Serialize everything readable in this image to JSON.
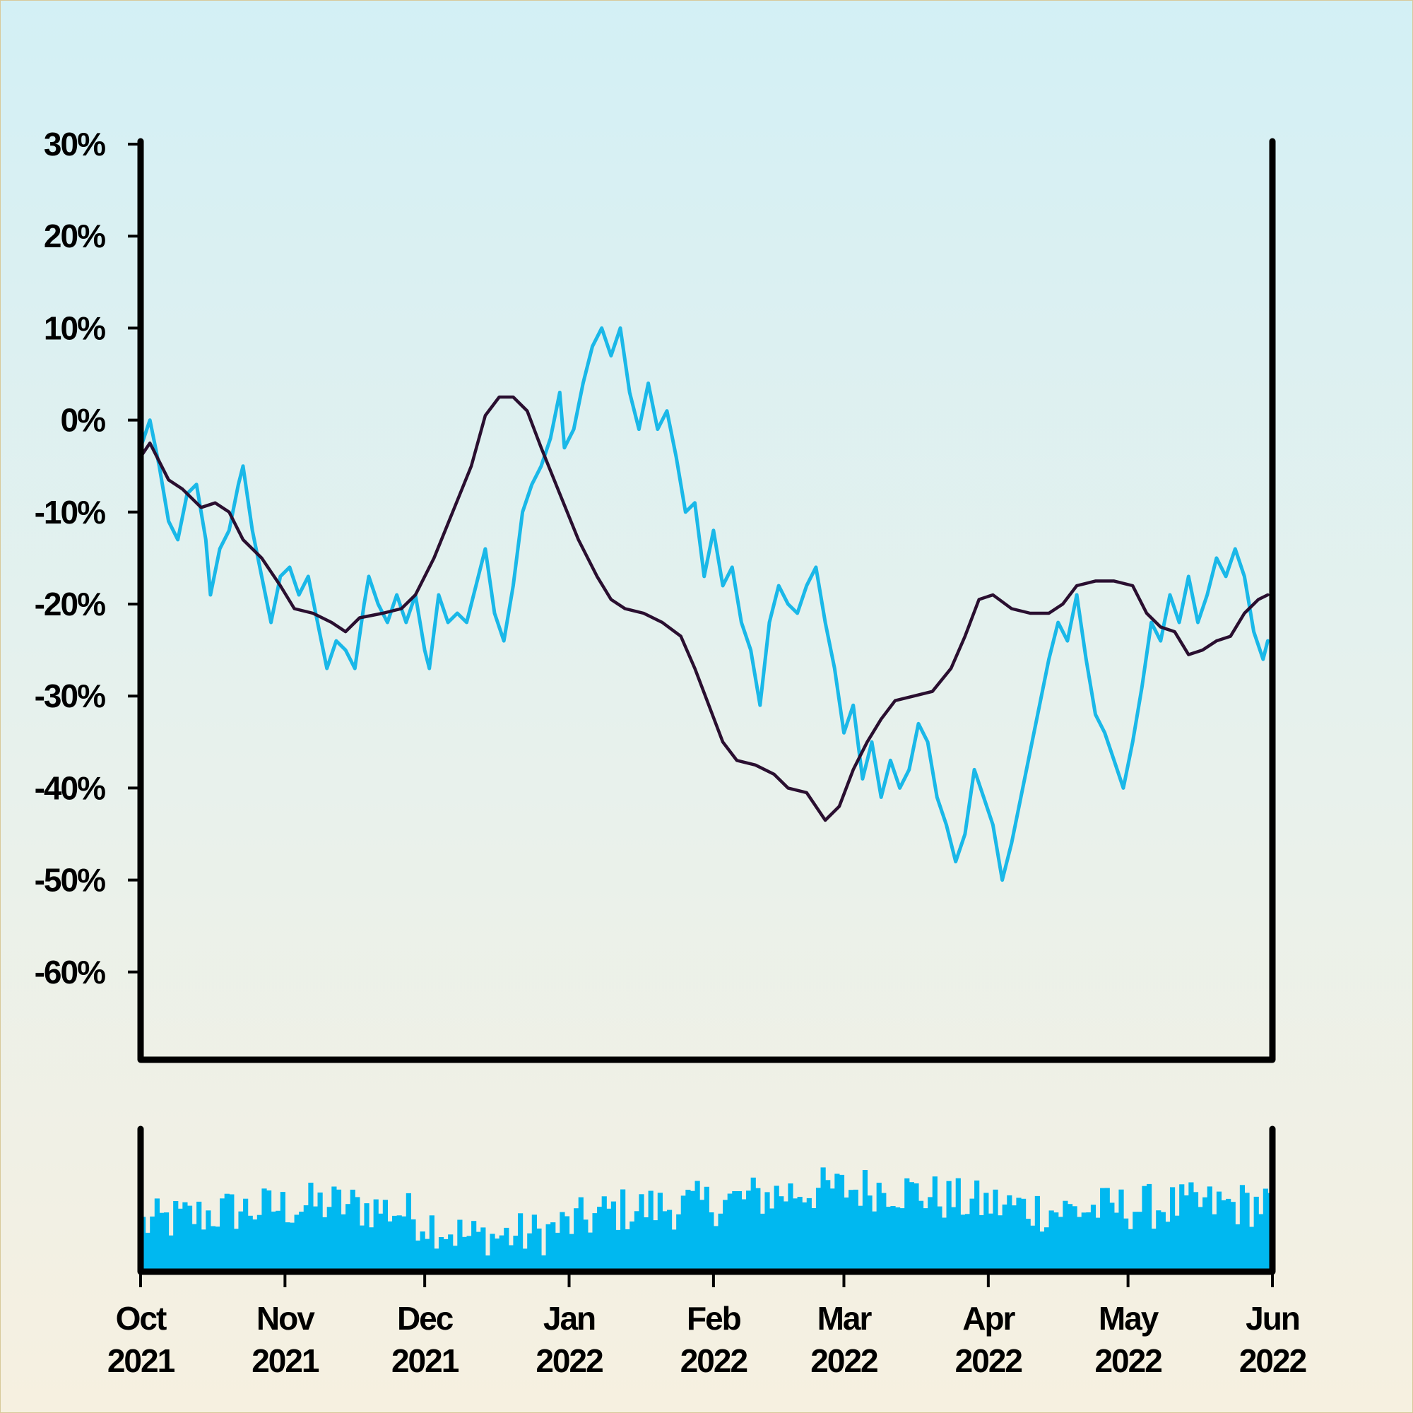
{
  "chart_data": [
    {
      "type": "line",
      "title": "",
      "xlabel": "",
      "ylabel": "",
      "ylim": [
        -70,
        30
      ],
      "y_ticks": [
        "30%",
        "20%",
        "10%",
        "0%",
        "-10%",
        "-20%",
        "-30%",
        "-40%",
        "-50%",
        "-60%"
      ],
      "y_tick_values": [
        30,
        20,
        10,
        0,
        -10,
        -20,
        -30,
        -40,
        -50,
        -60
      ],
      "x_range": [
        "2021-10-01",
        "2022-06-01"
      ],
      "grid": false,
      "series": [
        {
          "color": "#1ab8e8",
          "points": [
            [
              "2021-10-01",
              -3
            ],
            [
              "2021-10-03",
              0
            ],
            [
              "2021-10-05",
              -5
            ],
            [
              "2021-10-07",
              -11
            ],
            [
              "2021-10-09",
              -13
            ],
            [
              "2021-10-11",
              -8
            ],
            [
              "2021-10-13",
              -7
            ],
            [
              "2021-10-15",
              -13
            ],
            [
              "2021-10-16",
              -19
            ],
            [
              "2021-10-18",
              -14
            ],
            [
              "2021-10-20",
              -12
            ],
            [
              "2021-10-22",
              -7
            ],
            [
              "2021-10-23",
              -5
            ],
            [
              "2021-10-25",
              -12
            ],
            [
              "2021-10-27",
              -17
            ],
            [
              "2021-10-29",
              -22
            ],
            [
              "2021-10-31",
              -17
            ],
            [
              "2021-11-02",
              -16
            ],
            [
              "2021-11-04",
              -19
            ],
            [
              "2021-11-06",
              -17
            ],
            [
              "2021-11-08",
              -22
            ],
            [
              "2021-11-10",
              -27
            ],
            [
              "2021-11-12",
              -24
            ],
            [
              "2021-11-14",
              -25
            ],
            [
              "2021-11-16",
              -27
            ],
            [
              "2021-11-18",
              -20
            ],
            [
              "2021-11-19",
              -17
            ],
            [
              "2021-11-21",
              -20
            ],
            [
              "2021-11-23",
              -22
            ],
            [
              "2021-11-25",
              -19
            ],
            [
              "2021-11-27",
              -22
            ],
            [
              "2021-11-29",
              -19
            ],
            [
              "2021-12-01",
              -25
            ],
            [
              "2021-12-02",
              -27
            ],
            [
              "2021-12-04",
              -19
            ],
            [
              "2021-12-06",
              -22
            ],
            [
              "2021-12-08",
              -21
            ],
            [
              "2021-12-10",
              -22
            ],
            [
              "2021-12-12",
              -18
            ],
            [
              "2021-12-14",
              -14
            ],
            [
              "2021-12-16",
              -21
            ],
            [
              "2021-12-18",
              -24
            ],
            [
              "2021-12-20",
              -18
            ],
            [
              "2021-12-22",
              -10
            ],
            [
              "2021-12-24",
              -7
            ],
            [
              "2021-12-26",
              -5
            ],
            [
              "2021-12-28",
              -2
            ],
            [
              "2021-12-30",
              3
            ],
            [
              "2021-12-31",
              -3
            ],
            [
              "2022-01-02",
              -1
            ],
            [
              "2022-01-04",
              4
            ],
            [
              "2022-01-06",
              8
            ],
            [
              "2022-01-08",
              10
            ],
            [
              "2022-01-10",
              7
            ],
            [
              "2022-01-12",
              10
            ],
            [
              "2022-01-14",
              3
            ],
            [
              "2022-01-16",
              -1
            ],
            [
              "2022-01-18",
              4
            ],
            [
              "2022-01-20",
              -1
            ],
            [
              "2022-01-22",
              1
            ],
            [
              "2022-01-24",
              -4
            ],
            [
              "2022-01-26",
              -10
            ],
            [
              "2022-01-28",
              -9
            ],
            [
              "2022-01-30",
              -17
            ],
            [
              "2022-02-01",
              -12
            ],
            [
              "2022-02-03",
              -18
            ],
            [
              "2022-02-05",
              -16
            ],
            [
              "2022-02-07",
              -22
            ],
            [
              "2022-02-09",
              -25
            ],
            [
              "2022-02-11",
              -31
            ],
            [
              "2022-02-13",
              -22
            ],
            [
              "2022-02-15",
              -18
            ],
            [
              "2022-02-17",
              -20
            ],
            [
              "2022-02-19",
              -21
            ],
            [
              "2022-02-21",
              -18
            ],
            [
              "2022-02-23",
              -16
            ],
            [
              "2022-02-25",
              -22
            ],
            [
              "2022-02-27",
              -27
            ],
            [
              "2022-03-01",
              -34
            ],
            [
              "2022-03-03",
              -31
            ],
            [
              "2022-03-05",
              -39
            ],
            [
              "2022-03-07",
              -35
            ],
            [
              "2022-03-09",
              -41
            ],
            [
              "2022-03-11",
              -37
            ],
            [
              "2022-03-13",
              -40
            ],
            [
              "2022-03-15",
              -38
            ],
            [
              "2022-03-17",
              -33
            ],
            [
              "2022-03-19",
              -35
            ],
            [
              "2022-03-21",
              -41
            ],
            [
              "2022-03-23",
              -44
            ],
            [
              "2022-03-25",
              -48
            ],
            [
              "2022-03-27",
              -45
            ],
            [
              "2022-03-29",
              -38
            ],
            [
              "2022-03-31",
              -41
            ],
            [
              "2022-04-02",
              -44
            ],
            [
              "2022-04-04",
              -50
            ],
            [
              "2022-04-06",
              -46
            ],
            [
              "2022-04-08",
              -41
            ],
            [
              "2022-04-10",
              -36
            ],
            [
              "2022-04-12",
              -31
            ],
            [
              "2022-04-14",
              -26
            ],
            [
              "2022-04-16",
              -22
            ],
            [
              "2022-04-18",
              -24
            ],
            [
              "2022-04-20",
              -19
            ],
            [
              "2022-04-22",
              -26
            ],
            [
              "2022-04-24",
              -32
            ],
            [
              "2022-04-26",
              -34
            ],
            [
              "2022-04-28",
              -37
            ],
            [
              "2022-04-30",
              -40
            ],
            [
              "2022-05-02",
              -35
            ],
            [
              "2022-05-04",
              -29
            ],
            [
              "2022-05-06",
              -22
            ],
            [
              "2022-05-08",
              -24
            ],
            [
              "2022-05-10",
              -19
            ],
            [
              "2022-05-12",
              -22
            ],
            [
              "2022-05-14",
              -17
            ],
            [
              "2022-05-16",
              -22
            ],
            [
              "2022-05-18",
              -19
            ],
            [
              "2022-05-20",
              -15
            ],
            [
              "2022-05-22",
              -17
            ],
            [
              "2022-05-24",
              -14
            ],
            [
              "2022-05-26",
              -17
            ],
            [
              "2022-05-28",
              -23
            ],
            [
              "2022-05-30",
              -26
            ],
            [
              "2022-05-31",
              -24
            ]
          ]
        },
        {
          "color": "#2a0f30",
          "points": [
            [
              "2021-10-01",
              -4
            ],
            [
              "2021-10-03",
              -2.5
            ],
            [
              "2021-10-07",
              -6.5
            ],
            [
              "2021-10-10",
              -7.5
            ],
            [
              "2021-10-14",
              -9.5
            ],
            [
              "2021-10-17",
              -9
            ],
            [
              "2021-10-20",
              -10
            ],
            [
              "2021-10-23",
              -13
            ],
            [
              "2021-10-27",
              -15
            ],
            [
              "2021-10-31",
              -18
            ],
            [
              "2021-11-03",
              -20.5
            ],
            [
              "2021-11-07",
              -21
            ],
            [
              "2021-11-11",
              -22
            ],
            [
              "2021-11-14",
              -23
            ],
            [
              "2021-11-17",
              -21.5
            ],
            [
              "2021-11-22",
              -21
            ],
            [
              "2021-11-26",
              -20.5
            ],
            [
              "2021-11-29",
              -19
            ],
            [
              "2021-12-03",
              -15
            ],
            [
              "2021-12-07",
              -10
            ],
            [
              "2021-12-11",
              -5
            ],
            [
              "2021-12-14",
              0.5
            ],
            [
              "2021-12-17",
              2.5
            ],
            [
              "2021-12-20",
              2.5
            ],
            [
              "2021-12-23",
              1
            ],
            [
              "2021-12-26",
              -3
            ],
            [
              "2021-12-30",
              -8
            ],
            [
              "2022-01-03",
              -13
            ],
            [
              "2022-01-07",
              -17
            ],
            [
              "2022-01-10",
              -19.5
            ],
            [
              "2022-01-13",
              -20.5
            ],
            [
              "2022-01-17",
              -21
            ],
            [
              "2022-01-21",
              -22
            ],
            [
              "2022-01-25",
              -23.5
            ],
            [
              "2022-01-28",
              -27
            ],
            [
              "2022-01-31",
              -31
            ],
            [
              "2022-02-03",
              -35
            ],
            [
              "2022-02-06",
              -37
            ],
            [
              "2022-02-10",
              -37.5
            ],
            [
              "2022-02-14",
              -38.5
            ],
            [
              "2022-02-17",
              -40
            ],
            [
              "2022-02-21",
              -40.5
            ],
            [
              "2022-02-25",
              -43.5
            ],
            [
              "2022-02-28",
              -42
            ],
            [
              "2022-03-03",
              -38
            ],
            [
              "2022-03-06",
              -35
            ],
            [
              "2022-03-09",
              -32.5
            ],
            [
              "2022-03-12",
              -30.5
            ],
            [
              "2022-03-16",
              -30
            ],
            [
              "2022-03-20",
              -29.5
            ],
            [
              "2022-03-24",
              -27
            ],
            [
              "2022-03-27",
              -23.5
            ],
            [
              "2022-03-30",
              -19.5
            ],
            [
              "2022-04-02",
              -19
            ],
            [
              "2022-04-06",
              -20.5
            ],
            [
              "2022-04-10",
              -21
            ],
            [
              "2022-04-14",
              -21
            ],
            [
              "2022-04-17",
              -20
            ],
            [
              "2022-04-20",
              -18
            ],
            [
              "2022-04-24",
              -17.5
            ],
            [
              "2022-04-28",
              -17.5
            ],
            [
              "2022-05-02",
              -18
            ],
            [
              "2022-05-05",
              -21
            ],
            [
              "2022-05-08",
              -22.5
            ],
            [
              "2022-05-11",
              -23
            ],
            [
              "2022-05-14",
              -25.5
            ],
            [
              "2022-05-17",
              -25
            ],
            [
              "2022-05-20",
              -24
            ],
            [
              "2022-05-23",
              -23.5
            ],
            [
              "2022-05-26",
              -21
            ],
            [
              "2022-05-29",
              -19.5
            ],
            [
              "2022-05-31",
              -19
            ]
          ]
        }
      ]
    },
    {
      "type": "bar",
      "title": "",
      "x_range": [
        "2021-10-01",
        "2022-06-01"
      ],
      "x_ticks": [
        [
          "Oct",
          "2021"
        ],
        [
          "Nov",
          "2021"
        ],
        [
          "Dec",
          "2021"
        ],
        [
          "Jan",
          "2022"
        ],
        [
          "Feb",
          "2022"
        ],
        [
          "Mar",
          "2022"
        ],
        [
          "Apr",
          "2022"
        ],
        [
          "May",
          "2022"
        ],
        [
          "Jun",
          "2022"
        ]
      ],
      "x_tick_dates": [
        "2021-10-01",
        "2021-11-01",
        "2021-12-01",
        "2022-01-01",
        "2022-02-01",
        "2022-03-01",
        "2022-04-01",
        "2022-05-01",
        "2022-06-01"
      ],
      "color": "#00b8f0",
      "volume_trend": [
        [
          "2021-10-01",
          0.35
        ],
        [
          "2021-10-20",
          0.45
        ],
        [
          "2021-11-10",
          0.5
        ],
        [
          "2021-11-25",
          0.45
        ],
        [
          "2021-12-10",
          0.25
        ],
        [
          "2021-12-25",
          0.28
        ],
        [
          "2022-01-10",
          0.45
        ],
        [
          "2022-01-30",
          0.5
        ],
        [
          "2022-02-20",
          0.6
        ],
        [
          "2022-03-10",
          0.62
        ],
        [
          "2022-03-25",
          0.52
        ],
        [
          "2022-04-15",
          0.45
        ],
        [
          "2022-05-05",
          0.48
        ],
        [
          "2022-05-31",
          0.5
        ]
      ]
    }
  ]
}
